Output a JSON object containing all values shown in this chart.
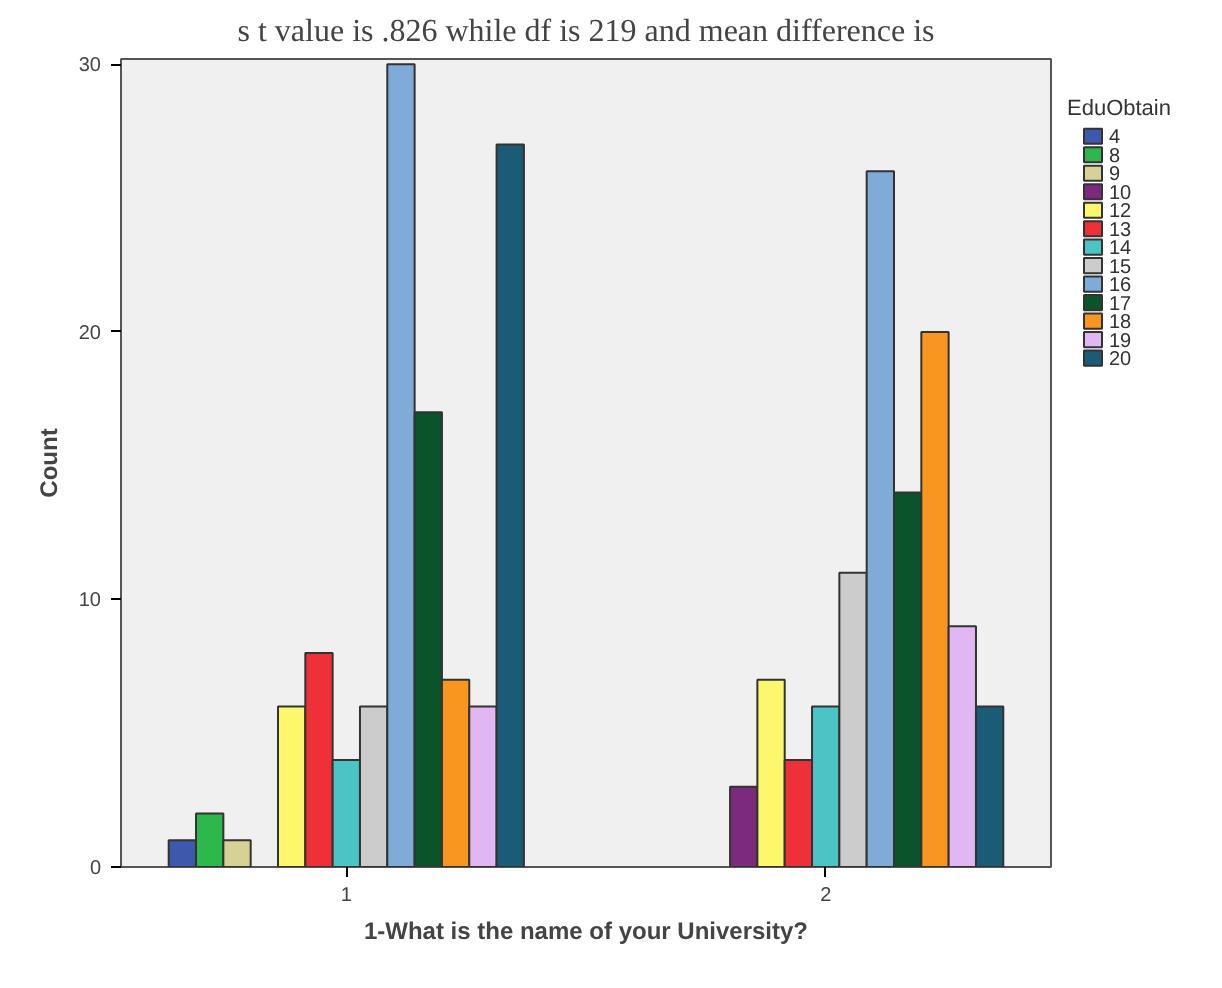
{
  "chart_data": {
    "type": "bar",
    "annotations": [
      "s t value is .826 while df is 219 and mean difference is"
    ],
    "xlabel": "1-What is the name of your University?",
    "ylabel": "Count",
    "legend_title": "EduObtain",
    "categories": [
      "1",
      "2"
    ],
    "ylim": [
      0,
      30.2
    ],
    "yticks": [
      0,
      10,
      20,
      30
    ],
    "grid": false,
    "legend": "right",
    "series": [
      {
        "name": "4",
        "color": "#3e58ac",
        "values": [
          1,
          null
        ]
      },
      {
        "name": "8",
        "color": "#2db84b",
        "values": [
          2,
          null
        ]
      },
      {
        "name": "9",
        "color": "#d6d295",
        "values": [
          1,
          null
        ]
      },
      {
        "name": "10",
        "color": "#7c2a7e",
        "values": [
          null,
          3
        ]
      },
      {
        "name": "12",
        "color": "#fbf86c",
        "values": [
          6,
          7
        ]
      },
      {
        "name": "13",
        "color": "#ef3039",
        "values": [
          8,
          4
        ]
      },
      {
        "name": "14",
        "color": "#4cc4c6",
        "values": [
          4,
          6
        ]
      },
      {
        "name": "15",
        "color": "#cccccc",
        "values": [
          6,
          11
        ]
      },
      {
        "name": "16",
        "color": "#7eabd8",
        "values": [
          30,
          26
        ]
      },
      {
        "name": "17",
        "color": "#0a532b",
        "values": [
          17,
          14
        ]
      },
      {
        "name": "18",
        "color": "#f8961e",
        "values": [
          7,
          20
        ]
      },
      {
        "name": "19",
        "color": "#e0b7f0",
        "values": [
          6,
          9
        ]
      },
      {
        "name": "20",
        "color": "#1a5b76",
        "values": [
          27,
          6
        ]
      }
    ]
  }
}
